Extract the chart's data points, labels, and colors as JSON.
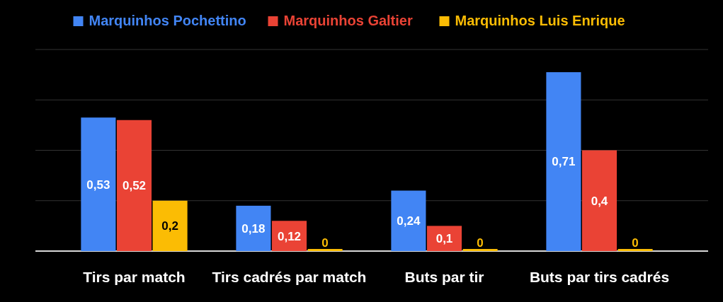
{
  "chart_data": {
    "type": "bar",
    "categories": [
      "Tirs par match",
      "Tirs cadrés par match",
      "Buts par tir",
      "Buts par tirs cadrés"
    ],
    "series": [
      {
        "name": "Marquinhos Pochettino",
        "color": "#4285f4",
        "values": [
          0.53,
          0.18,
          0.24,
          0.71
        ],
        "value_labels": [
          "0,53",
          "0,18",
          "0,24",
          "0,71"
        ]
      },
      {
        "name": "Marquinhos Galtier",
        "color": "#ea4335",
        "values": [
          0.52,
          0.12,
          0.1,
          0.4
        ],
        "value_labels": [
          "0,52",
          "0,12",
          "0,1",
          "0,4"
        ]
      },
      {
        "name": "Marquinhos Luis Enrique",
        "color": "#fbbc04",
        "values": [
          0.2,
          0,
          0,
          0
        ],
        "value_labels": [
          "0,2",
          "0",
          "0",
          "0"
        ]
      }
    ],
    "ylim": [
      0,
      0.8
    ],
    "yticks": [
      {
        "value": 0,
        "label": null
      },
      {
        "value": 0.2,
        "label": null
      },
      {
        "value": 0.4,
        "label": null
      },
      {
        "value": 0.6,
        "label": null
      },
      {
        "value": 0.8,
        "label": null
      }
    ],
    "tick_labels": "x",
    "grid": "y",
    "legend": "top"
  }
}
